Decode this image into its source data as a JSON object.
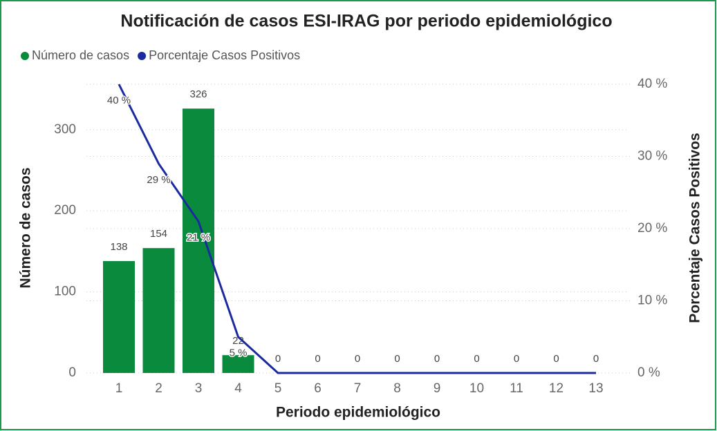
{
  "chart_data": {
    "type": "combo",
    "title": "Notificación de casos ESI-IRAG por periodo epidemiológico",
    "x_label": "Periodo epidemiológico",
    "y_label": "Número de casos",
    "y2_label": "Porcentaje Casos Positivos",
    "categories": [
      "1",
      "2",
      "3",
      "4",
      "5",
      "6",
      "7",
      "8",
      "9",
      "10",
      "11",
      "12",
      "13"
    ],
    "series": [
      {
        "name": "Número de casos",
        "type": "bar",
        "color": "#0a8a3c",
        "values": [
          138,
          154,
          326,
          22,
          0,
          0,
          0,
          0,
          0,
          0,
          0,
          0,
          0
        ]
      },
      {
        "name": "Porcentaje Casos Positivos",
        "type": "line",
        "axis": "y2",
        "color": "#1b2a9e",
        "values": [
          40,
          29,
          21,
          5,
          0,
          0,
          0,
          0,
          0,
          0,
          0,
          0,
          0
        ],
        "value_labels": [
          "40 %",
          "29 %",
          "21 %",
          "5 %",
          null,
          null,
          null,
          null,
          null,
          null,
          null,
          null,
          null
        ]
      }
    ],
    "ylim": [
      0,
      356
    ],
    "yticks": [
      0,
      100,
      200,
      300
    ],
    "y2lim": [
      0,
      40
    ],
    "y2ticks": [
      {
        "value": 0,
        "label": "0 %"
      },
      {
        "value": 10,
        "label": "10 %"
      },
      {
        "value": 20,
        "label": "20 %"
      },
      {
        "value": 30,
        "label": "30 %"
      },
      {
        "value": 40,
        "label": "40 %"
      }
    ],
    "grid": true,
    "legend": "top-left"
  }
}
